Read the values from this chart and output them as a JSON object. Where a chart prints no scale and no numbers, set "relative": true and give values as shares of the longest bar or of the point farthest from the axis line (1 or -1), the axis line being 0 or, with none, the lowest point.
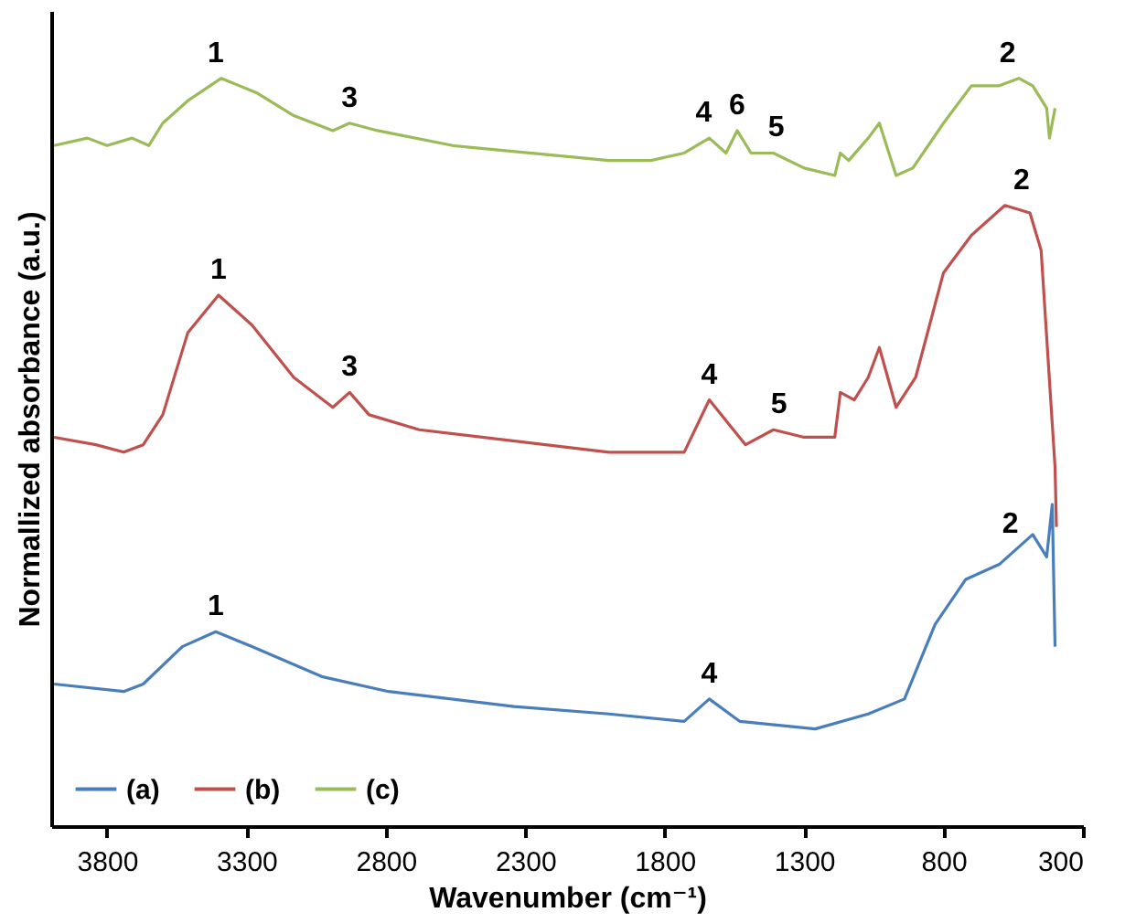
{
  "chart_data": {
    "type": "line",
    "xlabel": "Wavenumber (cm⁻¹)",
    "ylabel": "Normallized absorbance (a.u.)",
    "relative": true,
    "xlim": [
      4000,
      300
    ],
    "xticks": [
      3800,
      3300,
      2800,
      2300,
      1800,
      1300,
      800,
      300
    ],
    "legend": "bottom left",
    "series": [
      {
        "name": "(a)",
        "color": "#4a7ebb",
        "x": [
          3990,
          3740,
          3670,
          3530,
          3410,
          3280,
          3030,
          2790,
          2340,
          2000,
          1730,
          1640,
          1530,
          1260,
          1070,
          940,
          830,
          720,
          600,
          480,
          430,
          410,
          400
        ],
        "values": [
          0.19,
          0.18,
          0.19,
          0.24,
          0.26,
          0.24,
          0.2,
          0.18,
          0.16,
          0.15,
          0.14,
          0.17,
          0.14,
          0.13,
          0.15,
          0.17,
          0.27,
          0.33,
          0.35,
          0.39,
          0.36,
          0.43,
          0.24
        ]
      },
      {
        "name": "(b)",
        "color": "#c0504d",
        "x": [
          3990,
          3840,
          3740,
          3670,
          3600,
          3510,
          3400,
          3280,
          3130,
          2990,
          2930,
          2860,
          2680,
          2000,
          1730,
          1640,
          1510,
          1410,
          1300,
          1190,
          1170,
          1120,
          1070,
          1030,
          970,
          900,
          800,
          700,
          580,
          490,
          450,
          400,
          395
        ],
        "values": [
          0.52,
          0.51,
          0.5,
          0.51,
          0.55,
          0.66,
          0.71,
          0.67,
          0.6,
          0.56,
          0.58,
          0.55,
          0.53,
          0.5,
          0.5,
          0.57,
          0.51,
          0.53,
          0.52,
          0.52,
          0.58,
          0.57,
          0.6,
          0.64,
          0.56,
          0.6,
          0.74,
          0.79,
          0.83,
          0.82,
          0.77,
          0.48,
          0.4
        ]
      },
      {
        "name": "(c)",
        "color": "#9bbb59",
        "x": [
          3990,
          3870,
          3800,
          3710,
          3650,
          3600,
          3510,
          3390,
          3260,
          3130,
          2990,
          2930,
          2830,
          2560,
          2000,
          1850,
          1730,
          1640,
          1580,
          1540,
          1490,
          1410,
          1300,
          1190,
          1170,
          1140,
          1070,
          1030,
          970,
          910,
          800,
          700,
          600,
          530,
          480,
          430,
          420,
          400
        ],
        "values": [
          0.91,
          0.92,
          0.91,
          0.92,
          0.91,
          0.94,
          0.97,
          1.0,
          0.98,
          0.95,
          0.93,
          0.94,
          0.93,
          0.91,
          0.89,
          0.89,
          0.9,
          0.92,
          0.9,
          0.93,
          0.9,
          0.9,
          0.88,
          0.87,
          0.9,
          0.89,
          0.92,
          0.94,
          0.87,
          0.88,
          0.94,
          0.99,
          0.99,
          1.0,
          0.99,
          0.96,
          0.92,
          0.96
        ]
      }
    ],
    "annotations": [
      {
        "text": "1",
        "x": 3410,
        "y": 0.26
      },
      {
        "text": "4",
        "x": 1640,
        "y": 0.17
      },
      {
        "text": "2",
        "x": 560,
        "y": 0.37
      },
      {
        "text": "1",
        "x": 3400,
        "y": 0.71
      },
      {
        "text": "3",
        "x": 2930,
        "y": 0.58
      },
      {
        "text": "4",
        "x": 1640,
        "y": 0.57
      },
      {
        "text": "5",
        "x": 1390,
        "y": 0.53
      },
      {
        "text": "2",
        "x": 520,
        "y": 0.83
      },
      {
        "text": "1",
        "x": 3410,
        "y": 1.0
      },
      {
        "text": "3",
        "x": 2930,
        "y": 0.94
      },
      {
        "text": "4",
        "x": 1660,
        "y": 0.92
      },
      {
        "text": "6",
        "x": 1540,
        "y": 0.93
      },
      {
        "text": "5",
        "x": 1400,
        "y": 0.9
      },
      {
        "text": "2",
        "x": 570,
        "y": 1.0
      }
    ]
  }
}
